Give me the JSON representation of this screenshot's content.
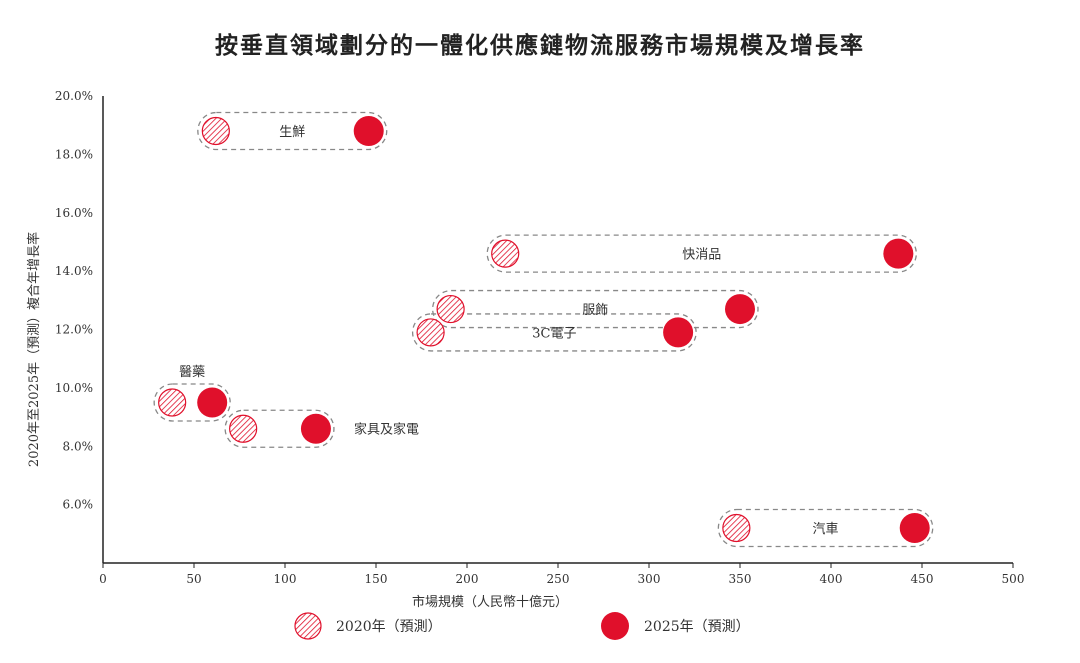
{
  "title": "按垂直領域劃分的一體化供應鏈物流服務市場規模及增長率",
  "colors": {
    "accent": "#e0102b",
    "dash": "#888888",
    "axis": "#222222"
  },
  "legend": {
    "items": [
      {
        "label": "2020年（預測）",
        "style": "hatched"
      },
      {
        "label": "2025年（預測）",
        "style": "solid"
      }
    ]
  },
  "chart_data": {
    "type": "scatter",
    "title": "按垂直領域劃分的一體化供應鏈物流服務市場規模及增長率",
    "xlabel": "市場規模（人民幣十億元）",
    "ylabel": "2020年至2025年（預測）複合年增長率",
    "xlim": [
      0,
      500
    ],
    "ylim": [
      4.0,
      20.0
    ],
    "xticks": [
      "0",
      "50",
      "100",
      "150",
      "200",
      "250",
      "300",
      "350",
      "400",
      "450",
      "500"
    ],
    "yticks": [
      "6.0%",
      "8.0%",
      "10.0%",
      "12.0%",
      "14.0%",
      "16.0%",
      "18.0%",
      "20.0%"
    ],
    "series": [
      {
        "name": "生鮮",
        "cagr": 18.8,
        "x2020": 62,
        "x2025": 146,
        "label_pos": "inside"
      },
      {
        "name": "快消品",
        "cagr": 14.6,
        "x2020": 221,
        "x2025": 437,
        "label_pos": "inside"
      },
      {
        "name": "服飾",
        "cagr": 12.7,
        "x2020": 191,
        "x2025": 350,
        "label_pos": "inside"
      },
      {
        "name": "3C電子",
        "cagr": 11.9,
        "x2020": 180,
        "x2025": 316,
        "label_pos": "inside"
      },
      {
        "name": "醫藥",
        "cagr": 9.5,
        "x2020": 38,
        "x2025": 60,
        "label_pos": "above"
      },
      {
        "name": "家具及家電",
        "cagr": 8.6,
        "x2020": 77,
        "x2025": 117,
        "label_pos": "right"
      },
      {
        "name": "汽車",
        "cagr": 5.2,
        "x2020": 348,
        "x2025": 446,
        "label_pos": "inside"
      }
    ]
  }
}
